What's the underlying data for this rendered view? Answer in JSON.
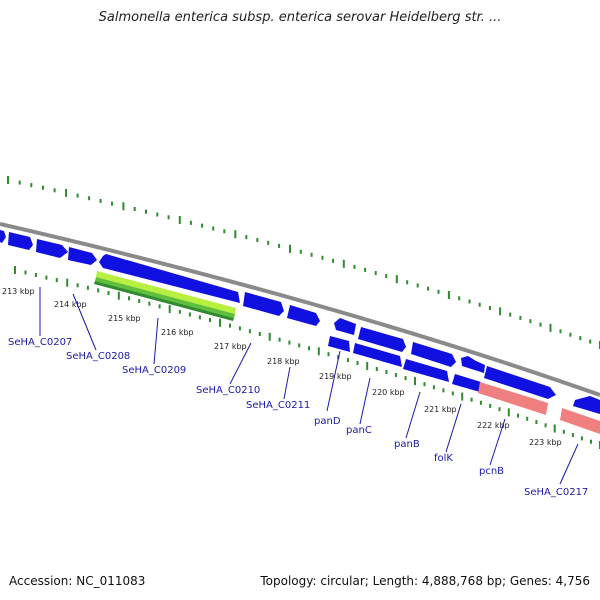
{
  "title": "Salmonella enterica subsp. enterica serovar Heidelberg str. ...",
  "footer": {
    "accession": "Accession: NC_011083",
    "summary": "Topology: circular; Length: 4,888,768 bp; Genes: 4,756"
  },
  "scale_ticks": [
    "213 kbp",
    "214 kbp",
    "215 kbp",
    "216 kbp",
    "217 kbp",
    "218 kbp",
    "219 kbp",
    "220 kbp",
    "221 kbp",
    "222 kbp",
    "223 kbp"
  ],
  "gene_labels": [
    "SeHA_C0207",
    "SeHA_C0208",
    "SeHA_C0209",
    "SeHA_C0210",
    "SeHA_C0211",
    "panD",
    "panC",
    "panB",
    "folK",
    "pcnB",
    "SeHA_C0217"
  ],
  "colors": {
    "cds": "#1010e0",
    "rrna_like": "#f08080",
    "green_track": "#2e8b2e",
    "lime_track": "#b8f040",
    "backbone": "#8a8a8a",
    "label": "#1a1aa8"
  }
}
